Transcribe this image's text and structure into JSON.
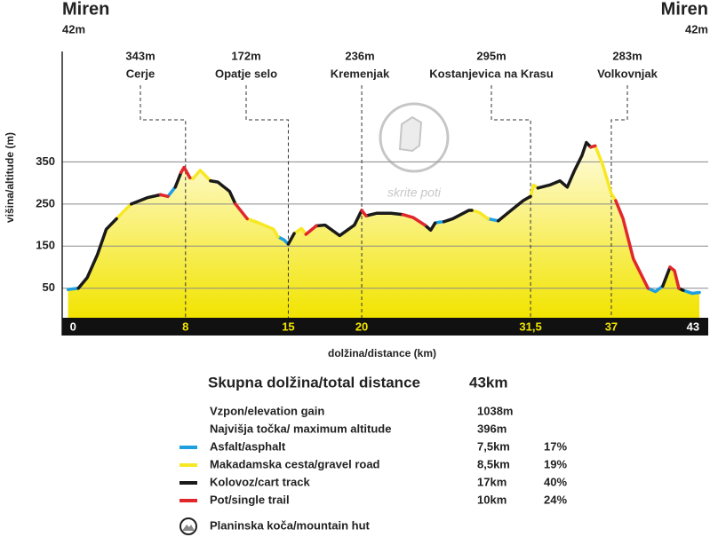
{
  "chart_data": {
    "type": "area",
    "start_label": {
      "name": "Miren",
      "elevation": "42m"
    },
    "end_label": {
      "name": "Miren",
      "elevation": "42m"
    },
    "y_label": "višina/altitude (m)",
    "x_label": "dolžina/distance (km)",
    "watermark": "skrite poti",
    "xlim": [
      -0.4,
      43.6
    ],
    "ylim": [
      -20,
      612
    ],
    "xticks": [
      0,
      8,
      15,
      20,
      {
        "value": 31.5,
        "label": "31,5"
      },
      37,
      43
    ],
    "yticks": [
      50,
      150,
      250,
      350
    ],
    "grid": true,
    "fill_color": "#f2e400",
    "annotations": [
      {
        "x": 8,
        "elevation": "343m",
        "name": "Cerje"
      },
      {
        "x": 15,
        "elevation": "172m",
        "name": "Opatje selo"
      },
      {
        "x": 20,
        "elevation": "236m",
        "name": "Kremenjak"
      },
      {
        "x": 31.5,
        "elevation": "295m",
        "name": "Kostanjevica na Krasu"
      },
      {
        "x": 37,
        "elevation": "283m",
        "name": "Volkovnjak"
      }
    ],
    "x": [
      0,
      0.7,
      1.3,
      2,
      2.6,
      3.3,
      4,
      4.3,
      5.4,
      6.3,
      6.8,
      7.3,
      7.7,
      7.9,
      8.3,
      8.5,
      9,
      9.7,
      10.2,
      11,
      11.4,
      12.2,
      13,
      14,
      14.3,
      14.7,
      15,
      15.4,
      15.9,
      16.2,
      16.9,
      17.5,
      18.5,
      19.5,
      20,
      20.15,
      20.3,
      21,
      22,
      22.8,
      23.5,
      24.3,
      24.7,
      25,
      25.3,
      25.6,
      26.2,
      27.3,
      27.5,
      28,
      28.6,
      29.3,
      30,
      31,
      31.5,
      31.7,
      32,
      32.8,
      33.5,
      34,
      34.5,
      35,
      35.3,
      35.6,
      35.9,
      36.4,
      37,
      37.3,
      37.8,
      38.5,
      39.5,
      40,
      40.5,
      41,
      41.3,
      41.6,
      41.9,
      42.5,
      43
    ],
    "series": [
      {
        "name": "Asfalt/asphalt",
        "color": "#1e9fe0",
        "distance": "7,5km",
        "percent": "17%",
        "values": [
          47,
          50,
          null,
          null,
          null,
          null,
          null,
          null,
          null,
          null,
          268,
          290,
          null,
          null,
          null,
          null,
          null,
          null,
          null,
          null,
          null,
          null,
          null,
          null,
          172,
          165,
          155,
          null,
          null,
          null,
          null,
          null,
          null,
          null,
          null,
          null,
          null,
          null,
          null,
          null,
          null,
          null,
          null,
          205,
          207,
          208,
          null,
          null,
          null,
          null,
          215,
          210,
          null,
          null,
          null,
          null,
          null,
          null,
          null,
          null,
          null,
          null,
          null,
          null,
          null,
          null,
          null,
          null,
          null,
          null,
          50,
          42,
          55,
          null,
          null,
          null,
          45,
          38,
          40
        ]
      },
      {
        "name": "Makadamska cesta/gravel road",
        "color": "#f7e823",
        "distance": "8,5km",
        "percent": "19%",
        "values": [
          null,
          null,
          null,
          null,
          null,
          215,
          240,
          250,
          null,
          null,
          null,
          null,
          null,
          null,
          312,
          310,
          330,
          305,
          null,
          null,
          null,
          215,
          205,
          190,
          172,
          null,
          null,
          180,
          192,
          178,
          null,
          null,
          null,
          null,
          null,
          null,
          null,
          null,
          null,
          null,
          null,
          null,
          null,
          null,
          null,
          null,
          null,
          null,
          235,
          230,
          215,
          null,
          null,
          null,
          268,
          295,
          288,
          null,
          null,
          null,
          null,
          null,
          null,
          null,
          388,
          345,
          275,
          258,
          null,
          null,
          null,
          null,
          null,
          null,
          null,
          null,
          null,
          null,
          null
        ]
      },
      {
        "name": "Kolovoz/cart track",
        "color": "#1a1a1a",
        "distance": "17km",
        "percent": "40%",
        "values": [
          null,
          50,
          75,
          130,
          190,
          215,
          null,
          250,
          265,
          272,
          null,
          290,
          325,
          null,
          null,
          null,
          null,
          305,
          302,
          280,
          250,
          null,
          null,
          null,
          null,
          null,
          155,
          180,
          null,
          null,
          198,
          200,
          175,
          200,
          235,
          null,
          222,
          228,
          228,
          225,
          null,
          200,
          188,
          205,
          null,
          208,
          215,
          235,
          235,
          null,
          null,
          210,
          230,
          258,
          268,
          null,
          288,
          295,
          305,
          290,
          330,
          365,
          396,
          385,
          null,
          null,
          null,
          null,
          null,
          null,
          null,
          null,
          55,
          100,
          null,
          50,
          45,
          null,
          null
        ]
      },
      {
        "name": "Pot/single trail",
        "color": "#e1262c",
        "distance": "10km",
        "percent": "24%",
        "values": [
          null,
          null,
          null,
          null,
          null,
          null,
          null,
          null,
          null,
          272,
          268,
          null,
          325,
          337,
          312,
          null,
          null,
          null,
          null,
          null,
          250,
          215,
          null,
          null,
          null,
          null,
          null,
          null,
          null,
          178,
          198,
          null,
          null,
          null,
          235,
          228,
          222,
          null,
          null,
          225,
          218,
          200,
          null,
          null,
          null,
          null,
          null,
          null,
          null,
          null,
          null,
          null,
          null,
          null,
          null,
          null,
          null,
          null,
          null,
          null,
          null,
          null,
          null,
          385,
          388,
          null,
          null,
          258,
          215,
          120,
          50,
          null,
          null,
          100,
          92,
          50,
          null,
          null,
          null
        ]
      }
    ]
  },
  "summary": {
    "total_label": "Skupna dolžina/total distance",
    "total_value": "43km",
    "rows": [
      [
        "Vzpon/elevation gain",
        "1038m"
      ],
      [
        "Najvišja točka/ maximum altitude",
        "396m"
      ]
    ],
    "hut_legend": "Planinska koča/mountain hut"
  }
}
